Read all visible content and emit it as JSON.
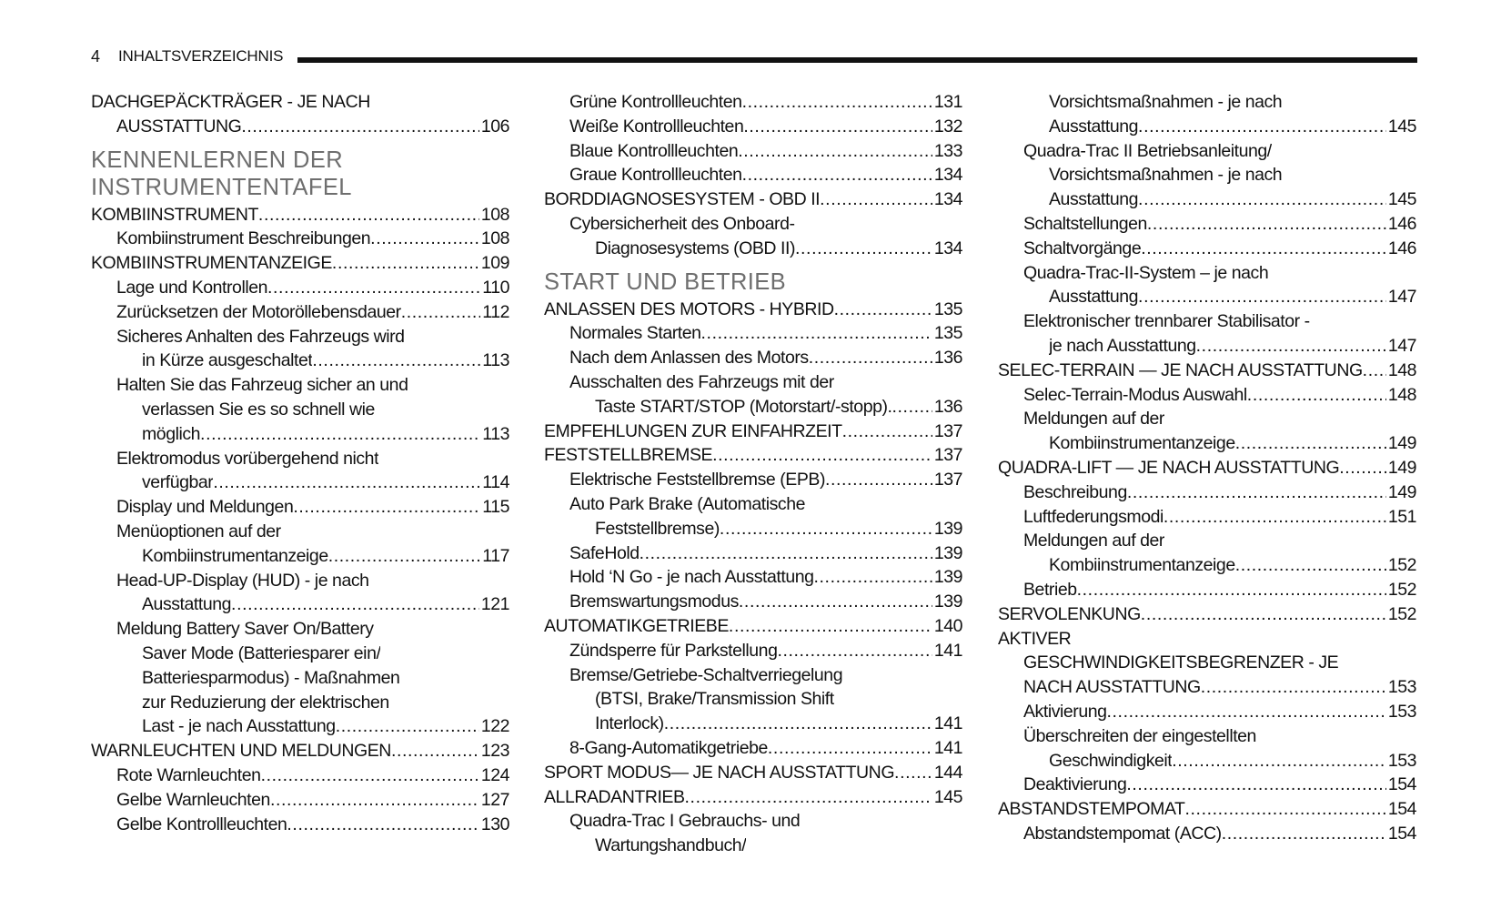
{
  "header": {
    "page_number": "4",
    "title": "INHALTSVERZEICHNIS"
  },
  "columns": [
    [
      {
        "l": 0,
        "t": "DACHGEPÄCKTRÄGER - JE NACH"
      },
      {
        "l": 1,
        "t": "AUSSTATTUNG",
        "p": "106"
      },
      {
        "h": [
          "KENNENLERNEN DER",
          "INSTRUMENTENTAFEL"
        ]
      },
      {
        "l": 0,
        "t": "KOMBIINSTRUMENT",
        "p": "108"
      },
      {
        "l": 1,
        "t": "Kombiinstrument Beschreibungen ",
        "p": "108"
      },
      {
        "l": 0,
        "t": "KOMBIINSTRUMENTANZEIGE",
        "p": "109"
      },
      {
        "l": 1,
        "t": "Lage und Kontrollen",
        "p": "110"
      },
      {
        "l": 1,
        "t": "Zurücksetzen der Motoröllebensdauer",
        "p": "112"
      },
      {
        "l": 1,
        "t": "Sicheres Anhalten des Fahrzeugs wird"
      },
      {
        "l": 2,
        "t": "in Kürze ausgeschaltet",
        "p": "113"
      },
      {
        "l": 1,
        "t": "Halten Sie das Fahrzeug sicher an und"
      },
      {
        "l": 2,
        "t": "verlassen Sie es so schnell wie"
      },
      {
        "l": 2,
        "t": "möglich",
        "p": "113"
      },
      {
        "l": 1,
        "t": "Elektromodus vorübergehend nicht"
      },
      {
        "l": 2,
        "t": "verfügbar ",
        "p": "114"
      },
      {
        "l": 1,
        "t": "Display und Meldungen",
        "p": "115"
      },
      {
        "l": 1,
        "t": "Menüoptionen auf der"
      },
      {
        "l": 2,
        "t": "Kombiinstrumentanzeige ",
        "p": "117"
      },
      {
        "l": 1,
        "t": "Head-UP-Display (HUD) - je nach"
      },
      {
        "l": 2,
        "t": "Ausstattung",
        "p": "121"
      },
      {
        "l": 1,
        "t": "Meldung Battery Saver On/Battery"
      },
      {
        "l": 2,
        "t": "Saver Mode (Batteriesparer ein/"
      },
      {
        "l": 2,
        "t": "Batteriesparmodus) - Maßnahmen"
      },
      {
        "l": 2,
        "t": "zur Reduzierung der elektrischen"
      },
      {
        "l": 2,
        "t": "Last - je nach Ausstattung",
        "p": "122"
      },
      {
        "l": 0,
        "t": "WARNLEUCHTEN UND MELDUNGEN",
        "p": "123"
      },
      {
        "l": 1,
        "t": "Rote Warnleuchten",
        "p": "124"
      },
      {
        "l": 1,
        "t": "Gelbe Warnleuchten",
        "p": "127"
      },
      {
        "l": 1,
        "t": "Gelbe Kontrollleuchten",
        "p": "130"
      }
    ],
    [
      {
        "l": 1,
        "t": "Grüne Kontrollleuchten",
        "p": "131"
      },
      {
        "l": 1,
        "t": "Weiße Kontrollleuchten",
        "p": "132"
      },
      {
        "l": 1,
        "t": "Blaue Kontrollleuchten",
        "p": "133"
      },
      {
        "l": 1,
        "t": "Graue Kontrollleuchten",
        "p": "134"
      },
      {
        "l": 0,
        "t": "BORDDIAGNOSESYSTEM - OBD II ",
        "p": "134"
      },
      {
        "l": 1,
        "t": "Cybersicherheit des Onboard-"
      },
      {
        "l": 2,
        "t": "Diagnosesystems (OBD II)",
        "p": "134"
      },
      {
        "h": [
          "START UND BETRIEB"
        ]
      },
      {
        "l": 0,
        "t": "ANLASSEN DES MOTORS - HYBRID",
        "p": "135"
      },
      {
        "l": 1,
        "t": "Normales Starten",
        "p": "135"
      },
      {
        "l": 1,
        "t": "Nach dem Anlassen des Motors",
        "p": "136"
      },
      {
        "l": 1,
        "t": "Ausschalten des Fahrzeugs mit der"
      },
      {
        "l": 2,
        "t": "Taste START/STOP (Motorstart/-stopp).",
        "p": "136"
      },
      {
        "l": 0,
        "t": "EMPFEHLUNGEN ZUR EINFAHRZEIT",
        "p": "137"
      },
      {
        "l": 0,
        "t": "FESTSTELLBREMSE ",
        "p": "137"
      },
      {
        "l": 1,
        "t": "Elektrische Feststellbremse (EPB) ",
        "p": "137"
      },
      {
        "l": 1,
        "t": "Auto Park Brake (Automatische"
      },
      {
        "l": 2,
        "t": "Feststellbremse)",
        "p": "139"
      },
      {
        "l": 1,
        "t": "SafeHold",
        "p": "139"
      },
      {
        "l": 1,
        "t": "Hold ‘N Go - je nach Ausstattung",
        "p": "139"
      },
      {
        "l": 1,
        "t": "Bremswartungsmodus",
        "p": "139"
      },
      {
        "l": 0,
        "t": "AUTOMATIKGETRIEBE ",
        "p": "140"
      },
      {
        "l": 1,
        "t": "Zündsperre für Parkstellung",
        "p": "141"
      },
      {
        "l": 1,
        "t": "Bremse/Getriebe-Schaltverriegelung"
      },
      {
        "l": 2,
        "t": "(BTSI, Brake/Transmission Shift"
      },
      {
        "l": 2,
        "t": "Interlock) ",
        "p": "141"
      },
      {
        "l": 1,
        "t": "8-Gang-Automatikgetriebe",
        "p": "141"
      },
      {
        "l": 0,
        "t": "SPORT MODUS— JE NACH AUSSTATTUNG",
        "p": "144"
      },
      {
        "l": 0,
        "t": "ALLRADANTRIEB",
        "p": "145"
      },
      {
        "l": 1,
        "t": "Quadra-Trac I Gebrauchs- und"
      },
      {
        "l": 2,
        "t": "Wartungshandbuch/"
      }
    ],
    [
      {
        "l": 2,
        "t": "Vorsichtsmaßnahmen - je nach"
      },
      {
        "l": 2,
        "t": "Ausstattung",
        "p": "145"
      },
      {
        "l": 1,
        "t": "Quadra-Trac II Betriebsanleitung/"
      },
      {
        "l": 2,
        "t": "Vorsichtsmaßnahmen - je nach"
      },
      {
        "l": 2,
        "t": "Ausstattung",
        "p": "145"
      },
      {
        "l": 1,
        "t": "Schaltstellungen",
        "p": "146"
      },
      {
        "l": 1,
        "t": "Schaltvorgänge",
        "p": "146"
      },
      {
        "l": 1,
        "t": "Quadra-Trac-II-System – je nach"
      },
      {
        "l": 2,
        "t": "Ausstattung",
        "p": "147"
      },
      {
        "l": 1,
        "t": "Elektronischer trennbarer Stabilisator -"
      },
      {
        "l": 2,
        "t": "je nach Ausstattung ",
        "p": "147"
      },
      {
        "l": 0,
        "t": "SELEC-TERRAIN — JE NACH AUSSTATTUNG",
        "p": "148"
      },
      {
        "l": 1,
        "t": "Selec-Terrain-Modus Auswahl",
        "p": "148"
      },
      {
        "l": 1,
        "t": "Meldungen auf der"
      },
      {
        "l": 2,
        "t": "Kombiinstrumentanzeige",
        "p": "149"
      },
      {
        "l": 0,
        "t": "QUADRA-LIFT — JE NACH AUSSTATTUNG",
        "p": "149"
      },
      {
        "l": 1,
        "t": "Beschreibung",
        "p": "149"
      },
      {
        "l": 1,
        "t": "Luftfederungsmodi",
        "p": "151"
      },
      {
        "l": 1,
        "t": "Meldungen auf der"
      },
      {
        "l": 2,
        "t": "Kombiinstrumentanzeige",
        "p": "152"
      },
      {
        "l": 1,
        "t": "Betrieb",
        "p": "152"
      },
      {
        "l": 0,
        "t": "SERVOLENKUNG ",
        "p": "152"
      },
      {
        "l": 0,
        "t": "AKTIVER"
      },
      {
        "l": 1,
        "t": "GESCHWINDIGKEITSBEGRENZER - JE"
      },
      {
        "l": 1,
        "t": "NACH AUSSTATTUNG",
        "p": "153"
      },
      {
        "l": 1,
        "t": "Aktivierung",
        "p": "153"
      },
      {
        "l": 1,
        "t": "Überschreiten der eingestellten"
      },
      {
        "l": 2,
        "t": "Geschwindigkeit",
        "p": "153"
      },
      {
        "l": 1,
        "t": "Deaktivierung",
        "p": "154"
      },
      {
        "l": 0,
        "t": "ABSTANDSTEMPOMAT",
        "p": "154"
      },
      {
        "l": 1,
        "t": "Abstandstempomat (ACC)",
        "p": "154"
      }
    ]
  ]
}
